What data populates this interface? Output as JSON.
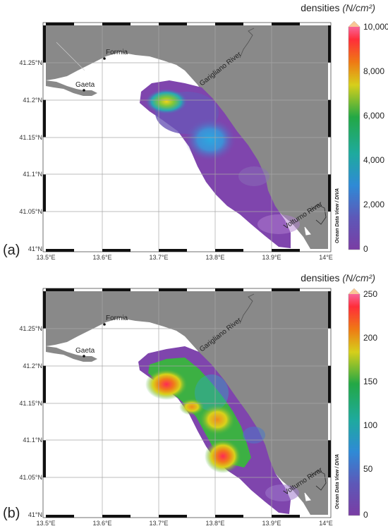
{
  "panels": [
    {
      "label": "(a)",
      "colorbar": {
        "title": "densities",
        "unit": "(N/cm²)",
        "ticks": [
          "10,000",
          "8,000",
          "6,000",
          "4,000",
          "2,000",
          "0"
        ],
        "min": 0,
        "max": 10000
      },
      "places": {
        "formia": "Formia",
        "gaeta": "Gaeta",
        "garigliano": "Garigliano River",
        "volturno": "Volturno River"
      },
      "credit": "Ocean Data View / DIVA",
      "lon_ticks": [
        "13.5°E",
        "13.6°E",
        "13.7°E",
        "13.8°E",
        "13.9°E",
        "14°E"
      ],
      "lat_ticks": [
        "41.25°N",
        "41.2°N",
        "41.15°N",
        "41.1°N",
        "41.05°N",
        "41°N"
      ]
    },
    {
      "label": "(b)",
      "colorbar": {
        "title": "densities",
        "unit": "(N/cm²)",
        "ticks": [
          "250",
          "200",
          "150",
          "100",
          "50",
          "0"
        ],
        "min": 0,
        "max": 250
      },
      "places": {
        "formia": "Formia",
        "gaeta": "Gaeta",
        "garigliano": "Garigliano River",
        "volturno": "Volturno River"
      },
      "credit": "Ocean Data View / DIVA",
      "lon_ticks": [
        "13.5°E",
        "13.6°E",
        "13.7°E",
        "13.8°E",
        "13.9°E",
        "14°E"
      ],
      "lat_ticks": [
        "41.25°N",
        "41.2°N",
        "41.15°N",
        "41.1°N",
        "41.05°N",
        "41°N"
      ]
    }
  ],
  "colors": {
    "land": "#898989",
    "sea": "#ffffff",
    "grid": "#a0a0a0",
    "colormap": [
      "#7b3fa6",
      "#3a7fd1",
      "#22a85a",
      "#d8d21a",
      "#e84520",
      "#ff2d4f",
      "#f4a7cf"
    ]
  }
}
